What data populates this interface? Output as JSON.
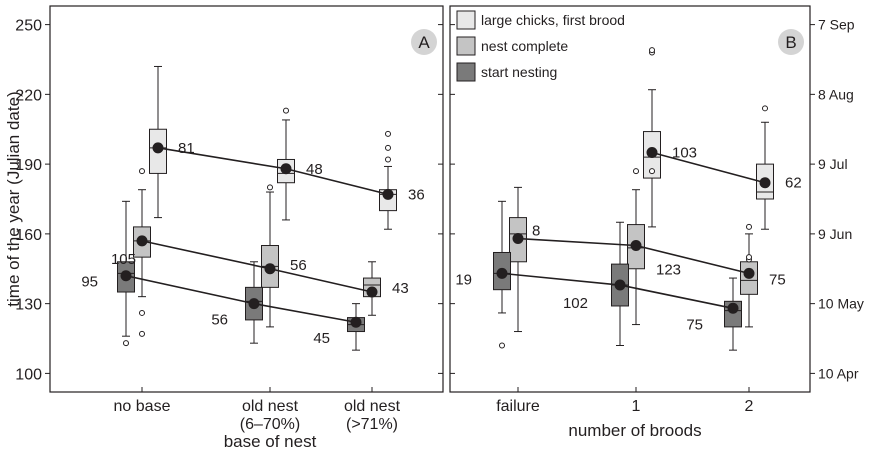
{
  "chart_data": [
    {
      "type": "box",
      "panel_label": "A",
      "ylabel": "time of the year (Julian date)",
      "xlabel": "base of nest",
      "ylim": [
        92,
        258
      ],
      "yticks": [
        "100",
        "130",
        "160",
        "190",
        "220",
        "250"
      ],
      "grid": false,
      "legend": "none",
      "categories": [
        {
          "lines": [
            "no base"
          ]
        },
        {
          "lines": [
            "old nest",
            "(6–70%)"
          ]
        },
        {
          "lines": [
            "old nest",
            "(>71%)"
          ]
        }
      ],
      "series": [
        {
          "name": "large chicks, first brood",
          "shade": "light",
          "means": [
            197,
            188,
            177
          ],
          "labels": [
            "81",
            "48",
            "36"
          ],
          "boxes": [
            {
              "min": 167,
              "q1": 186,
              "median": 197,
              "q3": 205,
              "max": 232,
              "outliers": []
            },
            {
              "min": 166,
              "q1": 182,
              "median": 186,
              "q3": 192,
              "max": 209,
              "outliers": [
                213
              ]
            },
            {
              "min": 162,
              "q1": 170,
              "median": 177,
              "q3": 179,
              "max": 189,
              "outliers": [
                192,
                197,
                203
              ]
            }
          ]
        },
        {
          "name": "nest complete",
          "shade": "mid",
          "means": [
            157,
            145,
            135
          ],
          "labels": [
            "105",
            "56",
            "43"
          ],
          "boxes": [
            {
              "min": 133,
              "q1": 150,
              "median": 157,
              "q3": 163,
              "max": 179,
              "outliers": [
                187,
                126,
                117
              ]
            },
            {
              "min": 120,
              "q1": 137,
              "median": 146,
              "q3": 155,
              "max": 178,
              "outliers": [
                180
              ]
            },
            {
              "min": 125,
              "q1": 133,
              "median": 138,
              "q3": 141,
              "max": 148,
              "outliers": []
            }
          ]
        },
        {
          "name": "start nesting",
          "shade": "dark",
          "means": [
            142,
            130,
            122
          ],
          "labels": [
            "95",
            "56",
            "45"
          ],
          "boxes": [
            {
              "min": 116,
              "q1": 135,
              "median": 143,
              "q3": 148,
              "max": 174,
              "outliers": [
                113
              ]
            },
            {
              "min": 113,
              "q1": 123,
              "median": 131,
              "q3": 137,
              "max": 148,
              "outliers": []
            },
            {
              "min": 110,
              "q1": 118,
              "median": 121,
              "q3": 124,
              "max": 130,
              "outliers": []
            }
          ]
        }
      ]
    },
    {
      "type": "box",
      "panel_label": "B",
      "xlabel": "number of broods",
      "ylim": [
        92,
        258
      ],
      "yticks_right": [
        "10 Apr",
        "10 May",
        "9 Jun",
        "9 Jul",
        "8 Aug",
        "7 Sep"
      ],
      "grid": false,
      "legend": "top-left",
      "categories": [
        {
          "lines": [
            "failure"
          ]
        },
        {
          "lines": [
            "1"
          ]
        },
        {
          "lines": [
            "2"
          ]
        }
      ],
      "series": [
        {
          "name": "large chicks, first brood",
          "shade": "light",
          "means": [
            null,
            195,
            182
          ],
          "labels": [
            "",
            "103",
            "62"
          ],
          "boxes": [
            null,
            {
              "min": 163,
              "q1": 184,
              "median": 193,
              "q3": 204,
              "max": 222,
              "outliers": [
                187,
                238,
                239
              ]
            },
            {
              "min": 162,
              "q1": 175,
              "median": 178,
              "q3": 190,
              "max": 208,
              "outliers": [
                214
              ]
            }
          ]
        },
        {
          "name": "nest complete",
          "shade": "mid",
          "means": [
            158,
            155,
            143
          ],
          "labels": [
            "8",
            "123",
            "75"
          ],
          "boxes": [
            {
              "min": 118,
              "q1": 148,
              "median": 160,
              "q3": 167,
              "max": 180,
              "outliers": []
            },
            {
              "min": 121,
              "q1": 145,
              "median": 154,
              "q3": 164,
              "max": 179,
              "outliers": [
                187
              ]
            },
            {
              "min": 120,
              "q1": 134,
              "median": 140,
              "q3": 148,
              "max": 160,
              "outliers": [
                149,
                150,
                163
              ]
            }
          ]
        },
        {
          "name": "start nesting",
          "shade": "dark",
          "means": [
            143,
            138,
            128
          ],
          "labels": [
            "19",
            "102",
            "75"
          ],
          "boxes": [
            {
              "min": 126,
              "q1": 136,
              "median": 143,
              "q3": 152,
              "max": 174,
              "outliers": [
                112
              ]
            },
            {
              "min": 112,
              "q1": 129,
              "median": 138,
              "q3": 147,
              "max": 165,
              "outliers": []
            },
            {
              "min": 110,
              "q1": 120,
              "median": 127,
              "q3": 131,
              "max": 141,
              "outliers": []
            }
          ]
        }
      ]
    }
  ],
  "colors": {
    "light": "#e8e8e8",
    "mid": "#c4c4c4",
    "dark": "#7a7a7a",
    "ink": "#231f20",
    "badge": "#d4d4d4"
  }
}
